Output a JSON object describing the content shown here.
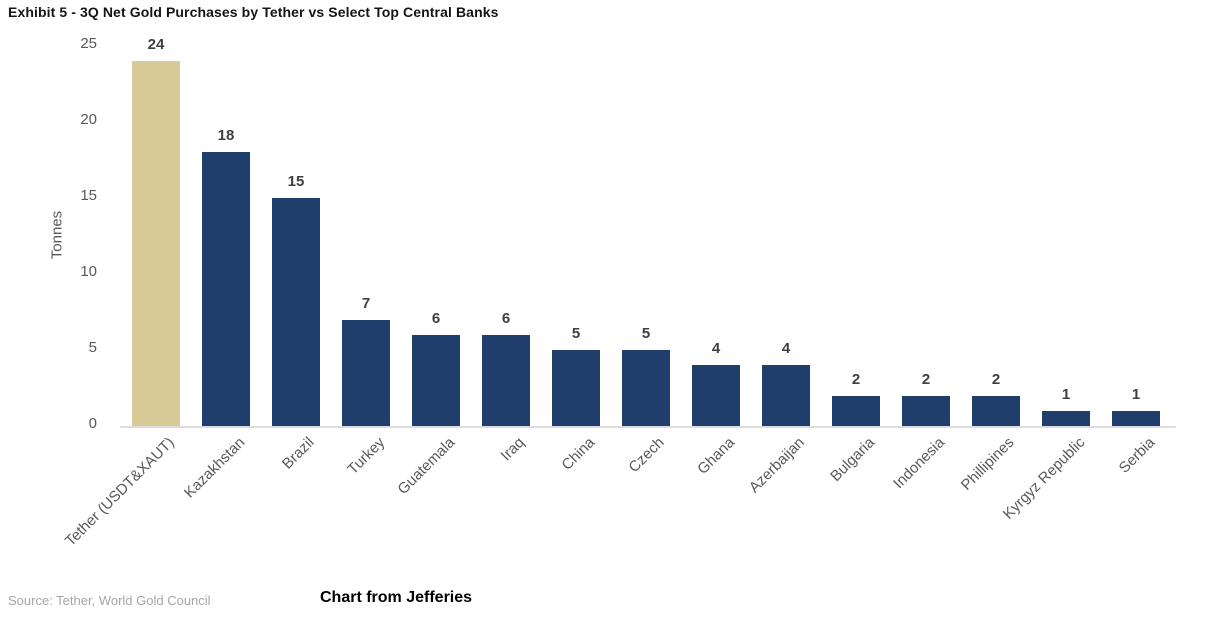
{
  "title": "Exhibit 5 - 3Q Net Gold Purchases by Tether vs Select Top Central Banks",
  "source": "Source: Tether, World Gold Council",
  "credit": "Chart from Jefferies",
  "colors": {
    "highlight_bar": "#d7ca96",
    "bank_bar": "#1f3e6b",
    "axis_line": "#dcdcdc",
    "tick_text": "#595959",
    "value_label": "#3f3f3f",
    "source_text": "#a6a6a6",
    "title_text": "#151515"
  },
  "chart_data": {
    "type": "bar",
    "categories": [
      "Tether (USDT&XAUT)",
      "Kazakhstan",
      "Brazil",
      "Turkey",
      "Guatemala",
      "Iraq",
      "China",
      "Czech",
      "Ghana",
      "Azerbaijan",
      "Bulgaria",
      "Indonesia",
      "Phillipines",
      "Kyrgyz Republic",
      "Serbia"
    ],
    "values": [
      24,
      18,
      15,
      7,
      6,
      6,
      5,
      5,
      4,
      4,
      2,
      2,
      2,
      1,
      1
    ],
    "highlight_index": 0,
    "title": "Exhibit 5 - 3Q Net Gold Purchases by Tether vs Select Top Central Banks",
    "xlabel": "",
    "ylabel": "Tonnes",
    "yticks": [
      0,
      5,
      10,
      15,
      20,
      25
    ],
    "ylim": [
      0,
      25
    ],
    "grid": false,
    "legend": false,
    "value_labels": true,
    "x_tick_rotation_deg": 45
  }
}
